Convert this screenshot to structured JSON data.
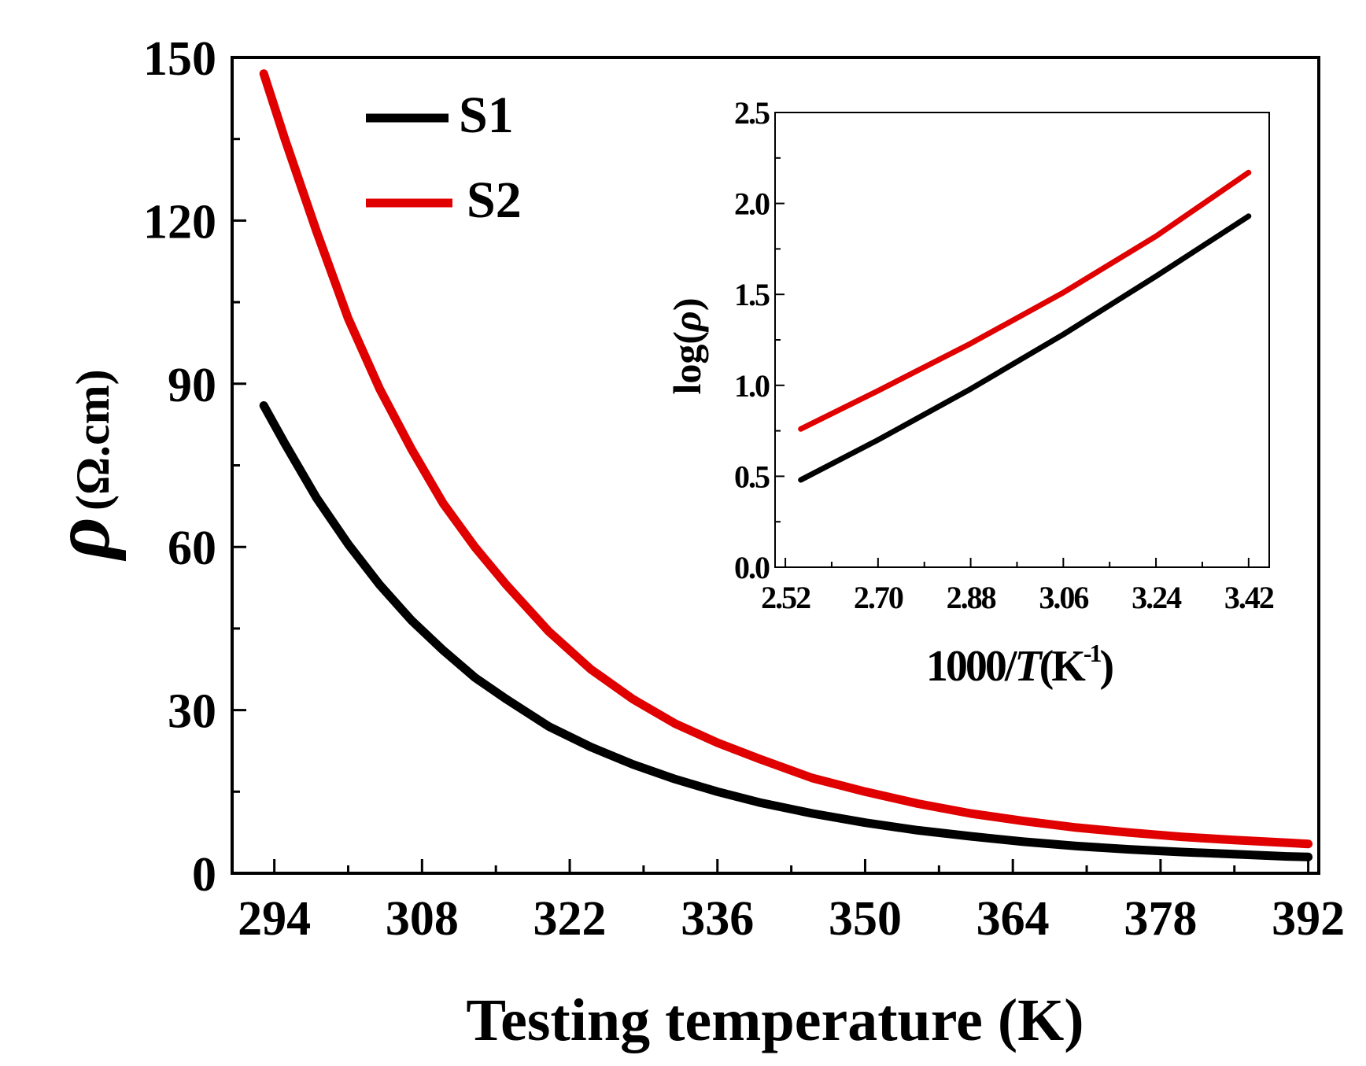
{
  "chart_data": [
    {
      "type": "line",
      "xlabel": "Testing temperature",
      "xlabel_unit": "(K)",
      "ylabel_symbol": "ρ",
      "ylabel_unit": "(Ω.cm)",
      "xlim": [
        290,
        393
      ],
      "ylim": [
        0,
        150
      ],
      "xticks": [
        "294",
        "308",
        "322",
        "336",
        "350",
        "364",
        "378",
        "392"
      ],
      "yticks": [
        "0",
        "30",
        "60",
        "90",
        "120",
        "150"
      ],
      "legend_position": "top-left",
      "series": [
        {
          "name": "S1",
          "color": "#000000",
          "x": [
            293,
            295,
            298,
            301,
            304,
            307,
            310,
            313,
            316,
            320,
            324,
            328,
            332,
            336,
            340,
            345,
            350,
            355,
            360,
            365,
            370,
            375,
            380,
            385,
            390,
            392
          ],
          "y": [
            86,
            79,
            69,
            60.5,
            53,
            46.5,
            41,
            36,
            32,
            27,
            23.2,
            20,
            17.3,
            15,
            13,
            11,
            9.3,
            7.9,
            6.8,
            5.8,
            5,
            4.4,
            3.9,
            3.5,
            3.1,
            3
          ]
        },
        {
          "name": "S2",
          "color": "#e00000",
          "x": [
            293,
            295,
            298,
            301,
            304,
            307,
            310,
            313,
            316,
            320,
            324,
            328,
            332,
            336,
            340,
            345,
            350,
            355,
            360,
            365,
            370,
            375,
            380,
            385,
            390,
            392
          ],
          "y": [
            147,
            135,
            118,
            102,
            89,
            78,
            68,
            60,
            53,
            44.5,
            37.5,
            32,
            27.5,
            24,
            21,
            17.5,
            15,
            12.8,
            11,
            9.6,
            8.4,
            7.5,
            6.7,
            6.1,
            5.6,
            5.4
          ]
        }
      ]
    },
    {
      "type": "line",
      "inset": true,
      "xlabel_prefix": "1000/",
      "xlabel_var": "T",
      "xlabel_unit_open": "(K",
      "xlabel_unit_sup": "-1",
      "xlabel_unit_close": ")",
      "ylabel_prefix": "log(",
      "ylabel_var": "ρ",
      "ylabel_suffix": ")",
      "xlim": [
        2.5,
        3.46
      ],
      "ylim": [
        0,
        2.5
      ],
      "xticks": [
        "2.52",
        "2.70",
        "2.88",
        "3.06",
        "3.24",
        "3.42"
      ],
      "yticks": [
        "0.0",
        "0.5",
        "1.0",
        "1.5",
        "2.0",
        "2.5"
      ],
      "series": [
        {
          "name": "S1",
          "color": "#000000",
          "x": [
            2.55,
            2.7,
            2.88,
            3.06,
            3.24,
            3.42
          ],
          "y": [
            0.48,
            0.7,
            0.98,
            1.28,
            1.6,
            1.93
          ]
        },
        {
          "name": "S2",
          "color": "#e00000",
          "x": [
            2.55,
            2.7,
            2.88,
            3.06,
            3.24,
            3.42
          ],
          "y": [
            0.76,
            0.97,
            1.23,
            1.51,
            1.82,
            2.17
          ]
        }
      ]
    }
  ]
}
